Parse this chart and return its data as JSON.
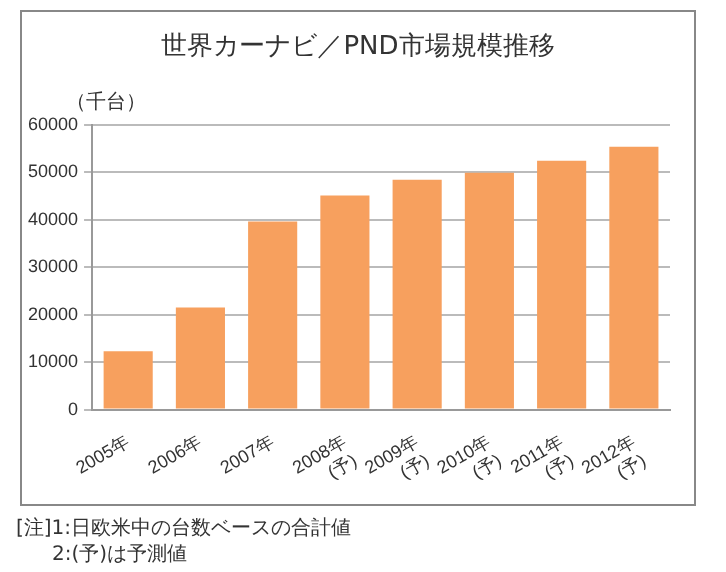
{
  "chart_data": {
    "type": "bar",
    "title": "世界カーナビ／PND市場規模推移",
    "ylabel": "（千台）",
    "categories": [
      "2005年",
      "2006年",
      "2007年",
      "2008年\n(予)",
      "2009年\n(予)",
      "2010年\n(予)",
      "2011年\n(予)",
      "2012年\n(予)"
    ],
    "values": [
      12300,
      21500,
      39600,
      45100,
      48400,
      49900,
      52400,
      55400
    ],
    "color": "#f7a05e",
    "ylim": [
      0,
      60000
    ],
    "yticks": [
      0,
      10000,
      20000,
      30000,
      40000,
      50000,
      60000
    ],
    "grid": "y",
    "legend": false,
    "annotations": [
      "[注]1:日欧米中の台数ベースの合計値",
      "2:(予)は予測値"
    ]
  }
}
